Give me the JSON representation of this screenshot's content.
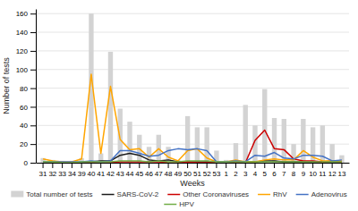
{
  "chart_data": {
    "type": "bar",
    "xlabel": "Weeks",
    "ylabel": "Number of tests",
    "categories": [
      "31",
      "32",
      "33",
      "34",
      "39",
      "40",
      "41",
      "42",
      "43",
      "44",
      "45",
      "46",
      "47",
      "48",
      "49",
      "50",
      "51",
      "52",
      "53",
      "1",
      "2",
      "3",
      "4",
      "5",
      "6",
      "7",
      "8",
      "9",
      "10",
      "11",
      "12",
      "13"
    ],
    "series": [
      {
        "name": "Total number of tests",
        "type": "bar",
        "color": "#d3d3d3",
        "values": [
          5,
          3,
          2,
          2,
          5,
          160,
          10,
          119,
          58,
          44,
          30,
          17,
          30,
          17,
          3,
          50,
          38,
          38,
          13,
          3,
          21,
          62,
          40,
          79,
          48,
          47,
          20,
          47,
          38,
          40,
          20,
          8
        ]
      },
      {
        "name": "SARS-CoV-2",
        "type": "line",
        "color": "#1a1a1a",
        "values": [
          0,
          0,
          0,
          0,
          0,
          1,
          2,
          2,
          8,
          10,
          8,
          3,
          2,
          3,
          1,
          1,
          1,
          1,
          1,
          0,
          1,
          1,
          1,
          2,
          2,
          1,
          1,
          1,
          1,
          1,
          1,
          1
        ]
      },
      {
        "name": "Other Coronaviruses",
        "type": "line",
        "color": "#cc0000",
        "values": [
          0,
          0,
          0,
          0,
          0,
          0,
          0,
          0,
          1,
          1,
          1,
          1,
          1,
          0,
          0,
          1,
          0,
          0,
          0,
          0,
          0,
          0,
          24,
          35,
          15,
          14,
          4,
          2,
          2,
          1,
          2,
          1
        ]
      },
      {
        "name": "RhV",
        "type": "line",
        "color": "#ffa500",
        "values": [
          4,
          2,
          1,
          1,
          4,
          95,
          10,
          82,
          25,
          14,
          15,
          6,
          15,
          6,
          2,
          13,
          15,
          5,
          1,
          1,
          3,
          1,
          1,
          3,
          4,
          3,
          3,
          13,
          6,
          2,
          2,
          2
        ]
      },
      {
        "name": "Adenovirus",
        "type": "line",
        "color": "#4472c4",
        "values": [
          1,
          1,
          1,
          1,
          1,
          2,
          1,
          2,
          13,
          13,
          10,
          7,
          8,
          13,
          15,
          14,
          15,
          13,
          1,
          1,
          2,
          1,
          8,
          7,
          11,
          5,
          4,
          8,
          8,
          7,
          2,
          3
        ]
      },
      {
        "name": "HPV",
        "type": "line",
        "color": "#70ad47",
        "values": [
          1,
          1,
          0,
          0,
          1,
          1,
          1,
          1,
          2,
          2,
          2,
          1,
          2,
          1,
          1,
          2,
          2,
          2,
          1,
          1,
          1,
          1,
          1,
          1,
          1,
          1,
          1,
          1,
          1,
          1,
          1,
          1
        ]
      }
    ],
    "ylim": [
      0,
      165
    ],
    "yticks": [
      0,
      20,
      40,
      60,
      80,
      100,
      120,
      140,
      160
    ],
    "grid": true,
    "legend": "bottom"
  }
}
